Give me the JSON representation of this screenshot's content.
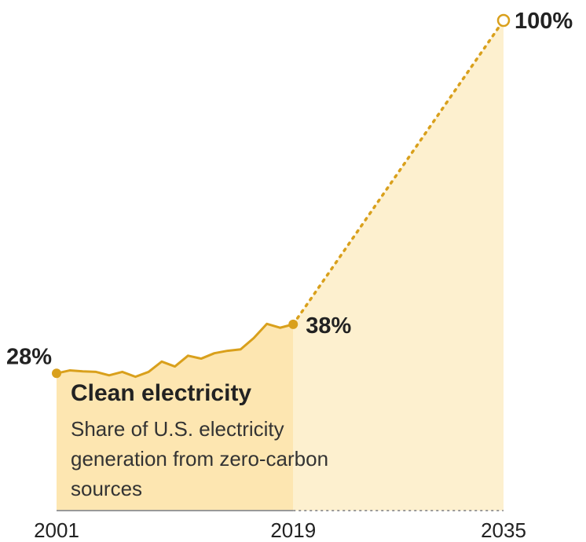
{
  "chart_data": {
    "type": "line",
    "title": "Clean electricity",
    "subtitle": "Share of U.S. electricity generation from zero-carbon sources",
    "xlabel": "",
    "ylabel": "",
    "x_tick_labels": [
      "2001",
      "2019",
      "2035"
    ],
    "xlim": [
      2001,
      2035
    ],
    "ylim": [
      0,
      100
    ],
    "grid": false,
    "series": [
      {
        "style": "solid",
        "x": [
          2001,
          2002,
          2003,
          2004,
          2005,
          2006,
          2007,
          2008,
          2009,
          2010,
          2011,
          2012,
          2013,
          2014,
          2015,
          2016,
          2017,
          2018,
          2019
        ],
        "y": [
          28,
          28.6,
          28.4,
          28.3,
          27.6,
          28.3,
          27.3,
          28.3,
          30.4,
          29.4,
          31.6,
          31.0,
          32.1,
          32.6,
          32.9,
          35.2,
          38.1,
          37.3,
          38
        ]
      },
      {
        "style": "dotted",
        "x": [
          2019,
          2035
        ],
        "y": [
          38,
          100
        ]
      }
    ],
    "annotations": [
      {
        "x": 2001,
        "y": 28,
        "label": "28%"
      },
      {
        "x": 2019,
        "y": 38,
        "label": "38%"
      },
      {
        "x": 2035,
        "y": 100,
        "label": "100%"
      }
    ],
    "colors": {
      "line": "#d9a01c",
      "fill_historical": "#fde6b1",
      "fill_projected": "#fdf0cf",
      "baseline": "#999999"
    }
  }
}
